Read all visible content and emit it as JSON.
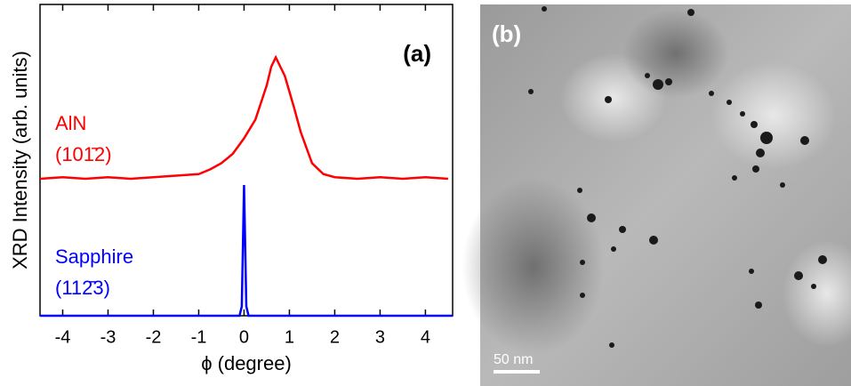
{
  "chart_data": {
    "type": "line",
    "title": "(a)",
    "x_label": "ϕ (degree)",
    "y_label": "XRD Intensity (arb. units)",
    "xlim": [
      -4.5,
      4.6
    ],
    "xticks": [
      -4,
      -3,
      -2,
      -1,
      0,
      1,
      2,
      3,
      4
    ],
    "ylim": [
      0,
      1
    ],
    "series": [
      {
        "name": "AlN",
        "label": "(101̄2)",
        "color": "#ff0000",
        "x": [
          -4.5,
          -4,
          -3.5,
          -3,
          -2.5,
          -2,
          -1.5,
          -1,
          -0.75,
          -0.5,
          -0.25,
          0,
          0.25,
          0.5,
          0.6,
          0.7,
          0.8,
          0.9,
          1.0,
          1.1,
          1.25,
          1.5,
          1.75,
          2,
          2.5,
          3,
          3.5,
          4,
          4.5
        ],
        "values": [
          0.44,
          0.445,
          0.44,
          0.445,
          0.44,
          0.445,
          0.45,
          0.455,
          0.47,
          0.49,
          0.52,
          0.57,
          0.63,
          0.74,
          0.8,
          0.83,
          0.8,
          0.77,
          0.72,
          0.67,
          0.59,
          0.49,
          0.455,
          0.445,
          0.44,
          0.445,
          0.44,
          0.445,
          0.44
        ]
      },
      {
        "name": "Sapphire",
        "label": "(112̄3)",
        "color": "#0000ff",
        "x": [
          -4.5,
          -0.1,
          -0.05,
          0,
          0.05,
          0.1,
          4.6
        ],
        "values": [
          0,
          0,
          0.03,
          0.42,
          0.03,
          0,
          0
        ]
      }
    ]
  },
  "image": {
    "label": "(b)",
    "scale_bar": "50 nm"
  }
}
